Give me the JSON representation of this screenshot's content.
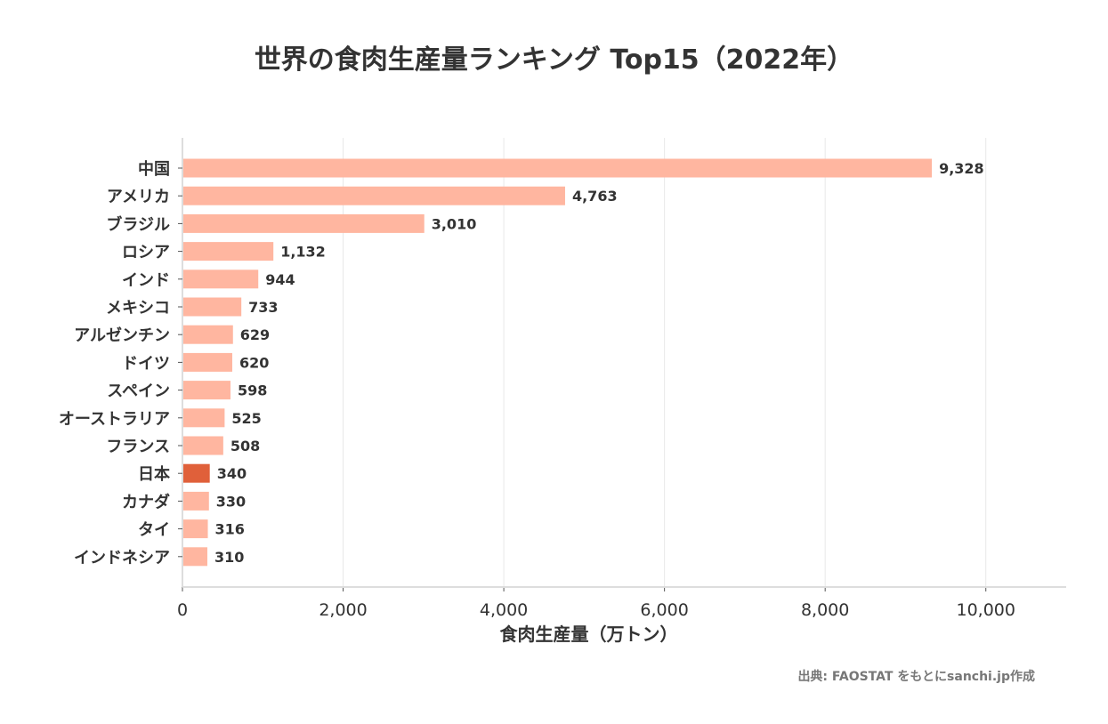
{
  "chart_data": {
    "type": "bar",
    "orientation": "horizontal",
    "title": "世界の食肉生産量ランキング Top15（2022年）",
    "xlabel": "食肉生産量（万トン）",
    "ylabel": "",
    "xlim": [
      0,
      11000
    ],
    "xticks": [
      0,
      2000,
      4000,
      6000,
      8000,
      10000
    ],
    "xtick_labels": [
      "0",
      "2,000",
      "4,000",
      "6,000",
      "8,000",
      "10,000"
    ],
    "grid": "vertical",
    "categories": [
      "中国",
      "アメリカ",
      "ブラジル",
      "ロシア",
      "インド",
      "メキシコ",
      "アルゼンチン",
      "ドイツ",
      "スペイン",
      "オーストラリア",
      "フランス",
      "日本",
      "カナダ",
      "タイ",
      "インドネシア"
    ],
    "values": [
      9328,
      4763,
      3010,
      1132,
      944,
      733,
      629,
      620,
      598,
      525,
      508,
      340,
      330,
      316,
      310
    ],
    "data_labels": [
      "9,328",
      "4,763",
      "3,010",
      "1,132",
      "944",
      "733",
      "629",
      "620",
      "598",
      "525",
      "508",
      "340",
      "330",
      "316",
      "310"
    ],
    "highlight": "日本",
    "colors": {
      "bar": "#FFB6A0",
      "highlight": "#E0603A",
      "grid": "#E8E8E8",
      "axis": "#DDDDDD"
    }
  },
  "source": "出典: FAOSTAT をもとにsanchi.jp作成"
}
